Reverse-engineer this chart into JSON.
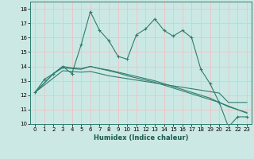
{
  "xlabel": "Humidex (Indice chaleur)",
  "bg_color": "#cce8e4",
  "grid_color": "#e8c8c8",
  "line_color": "#2e7d6e",
  "xlim": [
    -0.5,
    23.5
  ],
  "ylim": [
    10,
    18.5
  ],
  "xticks": [
    0,
    1,
    2,
    3,
    4,
    5,
    6,
    7,
    8,
    9,
    10,
    11,
    12,
    13,
    14,
    15,
    16,
    17,
    18,
    19,
    20,
    21,
    22,
    23
  ],
  "yticks": [
    10,
    11,
    12,
    13,
    14,
    15,
    16,
    17,
    18
  ],
  "series1_x": [
    0,
    1,
    2,
    3,
    4,
    5,
    6,
    7,
    8,
    9,
    10,
    11,
    12,
    13,
    14,
    15,
    16,
    17,
    18,
    19,
    20,
    21,
    22,
    23
  ],
  "series1_y": [
    12.2,
    13.1,
    13.5,
    14.0,
    13.5,
    15.5,
    17.8,
    16.5,
    15.8,
    14.7,
    14.5,
    16.2,
    16.6,
    17.3,
    16.5,
    16.1,
    16.5,
    16.0,
    13.8,
    12.8,
    11.5,
    9.8,
    10.5,
    10.5
  ],
  "series2_x": [
    0,
    2,
    3,
    4,
    5,
    6,
    7,
    8,
    9,
    10,
    11,
    12,
    13,
    14,
    15,
    16,
    17,
    18,
    19,
    20,
    21,
    22,
    23
  ],
  "series2_y": [
    12.2,
    13.2,
    13.7,
    13.65,
    13.6,
    13.65,
    13.5,
    13.35,
    13.25,
    13.15,
    13.05,
    12.95,
    12.85,
    12.75,
    12.65,
    12.55,
    12.45,
    12.35,
    12.25,
    12.15,
    11.5,
    11.5,
    11.5
  ],
  "series3_x": [
    0,
    2,
    3,
    4,
    5,
    6,
    7,
    8,
    9,
    10,
    11,
    12,
    13,
    14,
    15,
    16,
    17,
    18,
    19,
    20,
    21,
    22,
    23
  ],
  "series3_y": [
    12.2,
    13.5,
    14.0,
    13.9,
    13.85,
    14.0,
    13.85,
    13.75,
    13.6,
    13.45,
    13.3,
    13.15,
    13.0,
    12.8,
    12.6,
    12.4,
    12.2,
    12.0,
    11.8,
    11.5,
    11.2,
    11.0,
    10.8
  ],
  "series4_x": [
    0,
    2,
    3,
    4,
    5,
    6,
    7,
    8,
    9,
    10,
    11,
    12,
    13,
    14,
    15,
    16,
    17,
    18,
    19,
    20,
    21,
    22,
    23
  ],
  "series4_y": [
    12.2,
    13.5,
    13.9,
    13.85,
    13.8,
    14.0,
    13.85,
    13.7,
    13.55,
    13.35,
    13.2,
    13.05,
    12.9,
    12.7,
    12.5,
    12.3,
    12.1,
    11.9,
    11.7,
    11.5,
    11.25,
    11.0,
    10.75
  ]
}
